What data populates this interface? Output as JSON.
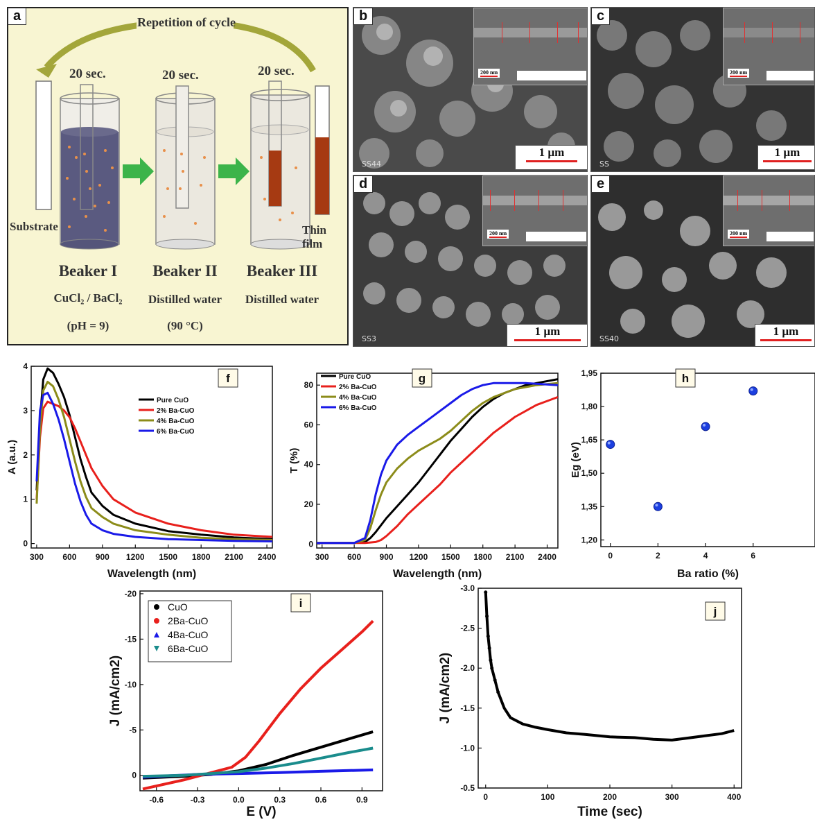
{
  "panel_a": {
    "letter": "a",
    "cycle_label": "Repetition of cycle",
    "time_labels": [
      "20 sec.",
      "20 sec.",
      "20 sec."
    ],
    "substrate_label": "Substrate",
    "thin_film_label": "Thin film",
    "beakers": [
      {
        "name": "Beaker I",
        "content": "CuCl₂ / BaCl₂",
        "condition": "(pH = 9)"
      },
      {
        "name": "Beaker II",
        "content": "Distilled water",
        "condition": "(90 °C)"
      },
      {
        "name": "Beaker III",
        "content": "Distilled water",
        "condition": ""
      }
    ],
    "colors": {
      "background": "#f8f5d2",
      "arrow_green": "#3cb44a",
      "film": "#a63a12",
      "arrow_olive": "#a3a63a"
    }
  },
  "sem_panels": [
    {
      "letter": "b",
      "scale": "1 µm",
      "inset_scale": "200 nm",
      "caption": "SS44"
    },
    {
      "letter": "c",
      "scale": "1 µm",
      "inset_scale": "200 nm",
      "caption": "SS"
    },
    {
      "letter": "d",
      "scale": "1 µm",
      "inset_scale": "200 nm",
      "caption": "SS3"
    },
    {
      "letter": "e",
      "scale": "1 µm",
      "inset_scale": "200 nm",
      "caption": "SS40"
    }
  ],
  "chart_data": [
    {
      "id": "f",
      "type": "line",
      "letter": "f",
      "xlabel": "Wavelength (nm)",
      "ylabel": "A (a.u.)",
      "xlim": [
        250,
        2450
      ],
      "ylim": [
        -0.1,
        4
      ],
      "xticks": [
        300,
        600,
        900,
        1200,
        1500,
        1800,
        2100,
        2400
      ],
      "yticks": [
        0,
        1,
        2,
        3,
        4
      ],
      "legend": "top-right",
      "series": [
        {
          "name": "Pure CuO",
          "color": "#000000",
          "x": [
            300,
            330,
            360,
            400,
            450,
            500,
            550,
            600,
            650,
            700,
            750,
            800,
            900,
            1000,
            1200,
            1500,
            1800,
            2100,
            2450
          ],
          "y": [
            1.2,
            2.8,
            3.7,
            3.95,
            3.85,
            3.6,
            3.3,
            2.9,
            2.4,
            1.9,
            1.5,
            1.15,
            0.85,
            0.65,
            0.45,
            0.28,
            0.2,
            0.14,
            0.1
          ]
        },
        {
          "name": "2% Ba-CuO",
          "color": "#e8201c",
          "x": [
            300,
            330,
            360,
            400,
            450,
            500,
            550,
            600,
            650,
            700,
            750,
            800,
            900,
            1000,
            1200,
            1500,
            1800,
            2100,
            2450
          ],
          "y": [
            1.0,
            2.4,
            3.05,
            3.2,
            3.15,
            3.1,
            3.0,
            2.85,
            2.6,
            2.3,
            2.0,
            1.7,
            1.3,
            1.0,
            0.7,
            0.45,
            0.3,
            0.2,
            0.15
          ]
        },
        {
          "name": "4% Ba-CuO",
          "color": "#8c8c1a",
          "x": [
            300,
            330,
            360,
            400,
            450,
            500,
            550,
            600,
            650,
            700,
            750,
            800,
            900,
            1000,
            1200,
            1500,
            1800,
            2100,
            2450
          ],
          "y": [
            0.9,
            2.6,
            3.45,
            3.65,
            3.55,
            3.25,
            2.85,
            2.35,
            1.85,
            1.4,
            1.05,
            0.8,
            0.6,
            0.45,
            0.3,
            0.2,
            0.13,
            0.1,
            0.08
          ]
        },
        {
          "name": "6% Ba-CuO",
          "color": "#1a1ae8",
          "x": [
            300,
            330,
            360,
            400,
            450,
            500,
            550,
            600,
            650,
            700,
            750,
            800,
            900,
            1000,
            1200,
            1500,
            1800,
            2100,
            2450
          ],
          "y": [
            1.4,
            3.0,
            3.35,
            3.4,
            3.15,
            2.8,
            2.35,
            1.85,
            1.35,
            0.95,
            0.65,
            0.45,
            0.3,
            0.22,
            0.15,
            0.1,
            0.08,
            0.06,
            0.05
          ]
        }
      ]
    },
    {
      "id": "g",
      "type": "line",
      "letter": "g",
      "xlabel": "Wavelength (nm)",
      "ylabel": "T (%)",
      "xlim": [
        250,
        2500
      ],
      "ylim": [
        -2,
        86
      ],
      "xticks": [
        300,
        600,
        900,
        1200,
        1500,
        1800,
        2100,
        2400
      ],
      "yticks": [
        0,
        20,
        40,
        60,
        80
      ],
      "legend": "top-left",
      "series": [
        {
          "name": "Pure CuO",
          "color": "#000000",
          "x": [
            250,
            600,
            700,
            750,
            800,
            900,
            1000,
            1100,
            1200,
            1300,
            1400,
            1500,
            1600,
            1700,
            1800,
            1900,
            2000,
            2100,
            2200,
            2300,
            2500
          ],
          "y": [
            0.5,
            0.5,
            1,
            3,
            6,
            13,
            19,
            25,
            31,
            38,
            45,
            52,
            58,
            64,
            69,
            73,
            76,
            78,
            80,
            81,
            83
          ]
        },
        {
          "name": "2% Ba-CuO",
          "color": "#e8201c",
          "x": [
            250,
            700,
            800,
            850,
            900,
            1000,
            1100,
            1200,
            1300,
            1400,
            1500,
            1600,
            1700,
            1800,
            1900,
            2000,
            2100,
            2200,
            2300,
            2400,
            2500
          ],
          "y": [
            0.5,
            0.5,
            1,
            2,
            4,
            9,
            15,
            20,
            25,
            30,
            36,
            41,
            46,
            51,
            56,
            60,
            64,
            67,
            70,
            72,
            74
          ]
        },
        {
          "name": "4% Ba-CuO",
          "color": "#8c8c1a",
          "x": [
            250,
            600,
            700,
            750,
            800,
            850,
            900,
            1000,
            1100,
            1200,
            1300,
            1400,
            1500,
            1600,
            1700,
            1800,
            1900,
            2000,
            2100,
            2300,
            2500
          ],
          "y": [
            0.5,
            0.5,
            2,
            8,
            17,
            25,
            31,
            38,
            43,
            47,
            50,
            53,
            57,
            62,
            67,
            71,
            74,
            76,
            78,
            80,
            81
          ]
        },
        {
          "name": "6% Ba-CuO",
          "color": "#1a1ae8",
          "x": [
            250,
            600,
            700,
            750,
            800,
            850,
            900,
            1000,
            1100,
            1200,
            1300,
            1400,
            1500,
            1600,
            1700,
            1800,
            1900,
            2000,
            2100,
            2200,
            2500
          ],
          "y": [
            0.5,
            0.5,
            3,
            12,
            25,
            35,
            42,
            50,
            55,
            59,
            63,
            67,
            71,
            75,
            78,
            80,
            81,
            81,
            81,
            81,
            80
          ]
        }
      ]
    },
    {
      "id": "h",
      "type": "scatter",
      "letter": "h",
      "xlabel": "Ba ratio (%)",
      "ylabel": "Eg (eV)",
      "xlim": [
        -0.4,
        8.6
      ],
      "ylim": [
        1.17,
        1.95
      ],
      "xticks": [
        0,
        2,
        4,
        6
      ],
      "yticks": [
        "1,20",
        "1,35",
        "1,50",
        "1,65",
        "1,80",
        "1,95"
      ],
      "ytick_values": [
        1.2,
        1.35,
        1.5,
        1.65,
        1.8,
        1.95
      ],
      "series": [
        {
          "color": "#1c3fe0",
          "x": [
            0,
            2,
            4,
            6
          ],
          "y": [
            1.63,
            1.35,
            1.71,
            1.87
          ]
        }
      ]
    },
    {
      "id": "i",
      "type": "line",
      "letter": "i",
      "xlabel": "E (V)",
      "ylabel": "J (mA/cm2)",
      "xlim": [
        -0.72,
        1.05
      ],
      "ylim": [
        1.7,
        -20.3
      ],
      "xticks": [
        "-0.6",
        "-0.3",
        "0.0",
        "0.3",
        "0.6",
        "0.9"
      ],
      "xtick_values": [
        -0.6,
        -0.3,
        0.0,
        0.3,
        0.6,
        0.9
      ],
      "yticks": [
        "-20",
        "-15",
        "-10",
        "-5",
        "0"
      ],
      "ytick_values": [
        -20,
        -15,
        -10,
        -5,
        0
      ],
      "legend": "top-left",
      "series": [
        {
          "name": "CuO",
          "color": "#000000",
          "x": [
            -0.7,
            -0.4,
            -0.2,
            0,
            0.2,
            0.4,
            0.6,
            0.8,
            0.98
          ],
          "y": [
            0.3,
            0.1,
            -0.1,
            -0.5,
            -1.2,
            -2.2,
            -3.1,
            -4.0,
            -4.8
          ]
        },
        {
          "name": "2Ba-CuO",
          "color": "#e8201c",
          "x": [
            -0.7,
            -0.4,
            -0.2,
            -0.05,
            0.05,
            0.15,
            0.3,
            0.45,
            0.6,
            0.75,
            0.9,
            0.98
          ],
          "y": [
            1.5,
            0.5,
            -0.3,
            -0.9,
            -2.0,
            -3.8,
            -6.8,
            -9.5,
            -11.8,
            -13.8,
            -15.8,
            -17.0
          ]
        },
        {
          "name": "4Ba-CuO",
          "color": "#1a1ae8",
          "x": [
            -0.7,
            -0.3,
            0,
            0.3,
            0.6,
            0.98
          ],
          "y": [
            0.2,
            -0.1,
            -0.2,
            -0.3,
            -0.45,
            -0.6
          ]
        },
        {
          "name": "6Ba-CuO",
          "color": "#1a8c8c",
          "x": [
            -0.7,
            -0.4,
            -0.2,
            0,
            0.2,
            0.4,
            0.6,
            0.8,
            0.98
          ],
          "y": [
            0.1,
            0.0,
            -0.2,
            -0.4,
            -0.8,
            -1.3,
            -1.9,
            -2.5,
            -3.0
          ]
        }
      ]
    },
    {
      "id": "j",
      "type": "line",
      "letter": "j",
      "xlabel": "Time (sec)",
      "ylabel": "J (mA/cm2)",
      "xlim": [
        -12,
        412
      ],
      "ylim": [
        -0.5,
        -3.0
      ],
      "xticks": [
        0,
        100,
        200,
        300,
        400
      ],
      "yticks": [
        "-3.0",
        "-2.5",
        "-2.0",
        "-1.5",
        "-1.0",
        "-0.5"
      ],
      "ytick_values": [
        -3.0,
        -2.5,
        -2.0,
        -1.5,
        -1.0,
        -0.5
      ],
      "series": [
        {
          "color": "#000000",
          "x": [
            0,
            2,
            4,
            6,
            8,
            10,
            15,
            20,
            30,
            40,
            60,
            80,
            100,
            130,
            160,
            200,
            240,
            270,
            300,
            320,
            350,
            380,
            400
          ],
          "y": [
            -2.95,
            -2.65,
            -2.4,
            -2.25,
            -2.1,
            -2.0,
            -1.85,
            -1.7,
            -1.5,
            -1.38,
            -1.3,
            -1.26,
            -1.23,
            -1.19,
            -1.17,
            -1.14,
            -1.13,
            -1.11,
            -1.1,
            -1.12,
            -1.15,
            -1.18,
            -1.22
          ]
        }
      ]
    }
  ]
}
